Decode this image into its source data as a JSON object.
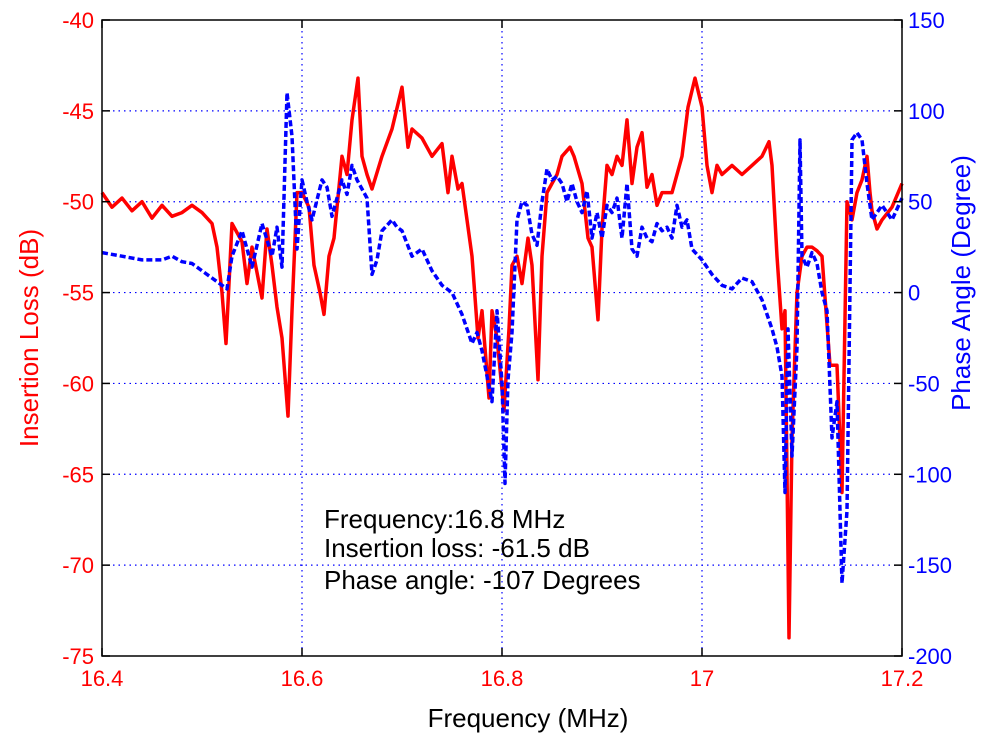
{
  "chart_data": {
    "type": "line",
    "xlabel": "Frequency (MHz)",
    "ylabel_left": "Insertion Loss (dB)",
    "ylabel_right": "Phase Angle (Degree)",
    "xlim": [
      16.4,
      17.2
    ],
    "ylim_left": [
      -75,
      -40
    ],
    "ylim_right": [
      -200,
      150
    ],
    "x_ticks": [
      "16.4",
      "16.6",
      "16.8",
      "17",
      "17.2"
    ],
    "x_tick_values": [
      16.4,
      16.6,
      16.8,
      17.0,
      17.2
    ],
    "y_left_ticks": [
      "-40",
      "-45",
      "-50",
      "-55",
      "-60",
      "-65",
      "-70",
      "-75"
    ],
    "y_left_tick_values": [
      -40,
      -45,
      -50,
      -55,
      -60,
      -65,
      -70,
      -75
    ],
    "y_right_ticks": [
      "150",
      "100",
      "50",
      "0",
      "-50",
      "-100",
      "-150",
      "-200"
    ],
    "y_right_tick_values": [
      150,
      100,
      50,
      0,
      -50,
      -100,
      -150,
      -200
    ],
    "grid": true,
    "colors": {
      "left_axis": "#ff0000",
      "right_axis": "#0000ff",
      "grid": "#0000ff"
    },
    "annotations": [
      "Frequency:16.8 MHz",
      "Insertion loss: -61.5 dB",
      "Phase angle: -107 Degrees"
    ],
    "series": [
      {
        "axis": "left",
        "color": "#ff0000",
        "style": "solid",
        "points": [
          [
            16.4,
            -49.5
          ],
          [
            16.41,
            -50.3
          ],
          [
            16.42,
            -49.8
          ],
          [
            16.43,
            -50.5
          ],
          [
            16.44,
            -50.0
          ],
          [
            16.45,
            -50.9
          ],
          [
            16.46,
            -50.2
          ],
          [
            16.47,
            -50.8
          ],
          [
            16.48,
            -50.6
          ],
          [
            16.49,
            -50.2
          ],
          [
            16.5,
            -50.6
          ],
          [
            16.51,
            -51.2
          ],
          [
            16.515,
            -52.5
          ],
          [
            16.52,
            -55.0
          ],
          [
            16.524,
            -57.8
          ],
          [
            16.53,
            -51.2
          ],
          [
            16.54,
            -52.2
          ],
          [
            16.545,
            -54.5
          ],
          [
            16.55,
            -52.5
          ],
          [
            16.56,
            -55.3
          ],
          [
            16.565,
            -51.5
          ],
          [
            16.57,
            -53.5
          ],
          [
            16.575,
            -55.8
          ],
          [
            16.58,
            -57.5
          ],
          [
            16.586,
            -61.8
          ],
          [
            16.59,
            -56.0
          ],
          [
            16.595,
            -49.5
          ],
          [
            16.6,
            -49.5
          ],
          [
            16.607,
            -50.3
          ],
          [
            16.612,
            -53.5
          ],
          [
            16.618,
            -55.0
          ],
          [
            16.622,
            -56.2
          ],
          [
            16.627,
            -53.0
          ],
          [
            16.632,
            -52.0
          ],
          [
            16.64,
            -47.5
          ],
          [
            16.645,
            -48.5
          ],
          [
            16.65,
            -45.5
          ],
          [
            16.656,
            -43.2
          ],
          [
            16.66,
            -47.5
          ],
          [
            16.665,
            -48.5
          ],
          [
            16.67,
            -49.3
          ],
          [
            16.68,
            -47.5
          ],
          [
            16.69,
            -46.0
          ],
          [
            16.7,
            -43.7
          ],
          [
            16.706,
            -47.0
          ],
          [
            16.71,
            -46.0
          ],
          [
            16.72,
            -46.5
          ],
          [
            16.73,
            -47.5
          ],
          [
            16.74,
            -46.8
          ],
          [
            16.746,
            -49.5
          ],
          [
            16.75,
            -47.5
          ],
          [
            16.756,
            -49.3
          ],
          [
            16.76,
            -49.0
          ],
          [
            16.77,
            -53.0
          ],
          [
            16.776,
            -57.5
          ],
          [
            16.78,
            -56.0
          ],
          [
            16.787,
            -60.8
          ],
          [
            16.79,
            -56.0
          ],
          [
            16.795,
            -57.5
          ],
          [
            16.802,
            -61.5
          ],
          [
            16.807,
            -57.0
          ],
          [
            16.81,
            -53.5
          ],
          [
            16.815,
            -53.0
          ],
          [
            16.82,
            -54.5
          ],
          [
            16.826,
            -52.0
          ],
          [
            16.83,
            -53.5
          ],
          [
            16.836,
            -59.8
          ],
          [
            16.84,
            -53.0
          ],
          [
            16.845,
            -49.5
          ],
          [
            16.85,
            -49.0
          ],
          [
            16.855,
            -48.5
          ],
          [
            16.86,
            -47.5
          ],
          [
            16.868,
            -47.0
          ],
          [
            16.872,
            -47.5
          ],
          [
            16.88,
            -49.0
          ],
          [
            16.886,
            -52.0
          ],
          [
            16.89,
            -52.5
          ],
          [
            16.896,
            -56.5
          ],
          [
            16.9,
            -51.5
          ],
          [
            16.905,
            -48.0
          ],
          [
            16.91,
            -48.5
          ],
          [
            16.915,
            -47.5
          ],
          [
            16.92,
            -48.0
          ],
          [
            16.925,
            -45.5
          ],
          [
            16.93,
            -49.0
          ],
          [
            16.935,
            -47.0
          ],
          [
            16.94,
            -46.2
          ],
          [
            16.945,
            -49.2
          ],
          [
            16.95,
            -48.5
          ],
          [
            16.955,
            -50.2
          ],
          [
            16.96,
            -49.5
          ],
          [
            16.97,
            -49.5
          ],
          [
            16.98,
            -47.5
          ],
          [
            16.986,
            -44.8
          ],
          [
            16.993,
            -43.2
          ],
          [
            17.0,
            -44.8
          ],
          [
            17.005,
            -48.0
          ],
          [
            17.01,
            -49.5
          ],
          [
            17.015,
            -48.0
          ],
          [
            17.02,
            -48.5
          ],
          [
            17.03,
            -48.0
          ],
          [
            17.04,
            -48.5
          ],
          [
            17.05,
            -48.0
          ],
          [
            17.06,
            -47.5
          ],
          [
            17.067,
            -46.7
          ],
          [
            17.07,
            -48.0
          ],
          [
            17.075,
            -53.0
          ],
          [
            17.08,
            -57.0
          ],
          [
            17.083,
            -56.0
          ],
          [
            17.087,
            -74.0
          ],
          [
            17.09,
            -63.0
          ],
          [
            17.095,
            -55.0
          ],
          [
            17.1,
            -53.0
          ],
          [
            17.105,
            -52.5
          ],
          [
            17.11,
            -52.5
          ],
          [
            17.115,
            -52.7
          ],
          [
            17.12,
            -53.0
          ],
          [
            17.128,
            -59.0
          ],
          [
            17.135,
            -59.0
          ],
          [
            17.14,
            -66.0
          ],
          [
            17.145,
            -50.0
          ],
          [
            17.15,
            -51.0
          ],
          [
            17.155,
            -49.5
          ],
          [
            17.16,
            -48.8
          ],
          [
            17.165,
            -47.5
          ],
          [
            17.168,
            -49.5
          ],
          [
            17.17,
            -50.5
          ],
          [
            17.175,
            -51.5
          ],
          [
            17.18,
            -51.0
          ],
          [
            17.19,
            -50.3
          ],
          [
            17.2,
            -49.0
          ]
        ]
      },
      {
        "axis": "right",
        "color": "#0000ff",
        "style": "dashed",
        "points": [
          [
            16.4,
            22
          ],
          [
            16.42,
            20
          ],
          [
            16.44,
            18
          ],
          [
            16.46,
            18
          ],
          [
            16.47,
            20
          ],
          [
            16.48,
            17
          ],
          [
            16.49,
            16
          ],
          [
            16.5,
            12
          ],
          [
            16.51,
            8
          ],
          [
            16.52,
            4
          ],
          [
            16.525,
            2
          ],
          [
            16.53,
            20
          ],
          [
            16.54,
            34
          ],
          [
            16.55,
            14
          ],
          [
            16.56,
            38
          ],
          [
            16.57,
            20
          ],
          [
            16.575,
            36
          ],
          [
            16.58,
            14
          ],
          [
            16.585,
            110
          ],
          [
            16.59,
            86
          ],
          [
            16.595,
            24
          ],
          [
            16.6,
            62
          ],
          [
            16.605,
            50
          ],
          [
            16.61,
            40
          ],
          [
            16.62,
            62
          ],
          [
            16.625,
            58
          ],
          [
            16.63,
            42
          ],
          [
            16.64,
            62
          ],
          [
            16.645,
            54
          ],
          [
            16.65,
            70
          ],
          [
            16.655,
            62
          ],
          [
            16.665,
            52
          ],
          [
            16.67,
            10
          ],
          [
            16.675,
            18
          ],
          [
            16.68,
            34
          ],
          [
            16.69,
            40
          ],
          [
            16.695,
            36
          ],
          [
            16.7,
            34
          ],
          [
            16.71,
            20
          ],
          [
            16.72,
            24
          ],
          [
            16.73,
            12
          ],
          [
            16.74,
            4
          ],
          [
            16.75,
            0
          ],
          [
            16.76,
            -12
          ],
          [
            16.765,
            -20
          ],
          [
            16.77,
            -28
          ],
          [
            16.775,
            -22
          ],
          [
            16.78,
            -32
          ],
          [
            16.785,
            -46
          ],
          [
            16.79,
            -60
          ],
          [
            16.795,
            -10
          ],
          [
            16.8,
            -50
          ],
          [
            16.803,
            -105
          ],
          [
            16.806,
            -48
          ],
          [
            16.81,
            -22
          ],
          [
            16.815,
            40
          ],
          [
            16.82,
            50
          ],
          [
            16.825,
            48
          ],
          [
            16.83,
            32
          ],
          [
            16.835,
            26
          ],
          [
            16.84,
            50
          ],
          [
            16.845,
            68
          ],
          [
            16.85,
            62
          ],
          [
            16.855,
            64
          ],
          [
            16.86,
            60
          ],
          [
            16.865,
            50
          ],
          [
            16.87,
            60
          ],
          [
            16.875,
            50
          ],
          [
            16.88,
            44
          ],
          [
            16.885,
            56
          ],
          [
            16.89,
            30
          ],
          [
            16.895,
            44
          ],
          [
            16.9,
            30
          ],
          [
            16.905,
            48
          ],
          [
            16.91,
            44
          ],
          [
            16.915,
            52
          ],
          [
            16.92,
            30
          ],
          [
            16.925,
            60
          ],
          [
            16.93,
            24
          ],
          [
            16.935,
            20
          ],
          [
            16.94,
            36
          ],
          [
            16.945,
            30
          ],
          [
            16.95,
            28
          ],
          [
            16.955,
            38
          ],
          [
            16.96,
            34
          ],
          [
            16.965,
            36
          ],
          [
            16.97,
            30
          ],
          [
            16.975,
            48
          ],
          [
            16.98,
            36
          ],
          [
            16.985,
            40
          ],
          [
            16.99,
            24
          ],
          [
            17.0,
            18
          ],
          [
            17.01,
            10
          ],
          [
            17.02,
            4
          ],
          [
            17.03,
            2
          ],
          [
            17.04,
            8
          ],
          [
            17.05,
            6
          ],
          [
            17.06,
            -4
          ],
          [
            17.07,
            -20
          ],
          [
            17.075,
            -30
          ],
          [
            17.08,
            -46
          ],
          [
            17.083,
            -110
          ],
          [
            17.086,
            -20
          ],
          [
            17.09,
            -90
          ],
          [
            17.095,
            -30
          ],
          [
            17.098,
            84
          ],
          [
            17.1,
            20
          ],
          [
            17.105,
            14
          ],
          [
            17.11,
            22
          ],
          [
            17.115,
            16
          ],
          [
            17.12,
            0
          ],
          [
            17.125,
            -10
          ],
          [
            17.13,
            -80
          ],
          [
            17.135,
            -60
          ],
          [
            17.14,
            -160
          ],
          [
            17.145,
            -120
          ],
          [
            17.15,
            84
          ],
          [
            17.155,
            88
          ],
          [
            17.16,
            84
          ],
          [
            17.165,
            60
          ],
          [
            17.17,
            40
          ],
          [
            17.18,
            48
          ],
          [
            17.19,
            40
          ],
          [
            17.2,
            52
          ]
        ]
      }
    ]
  }
}
